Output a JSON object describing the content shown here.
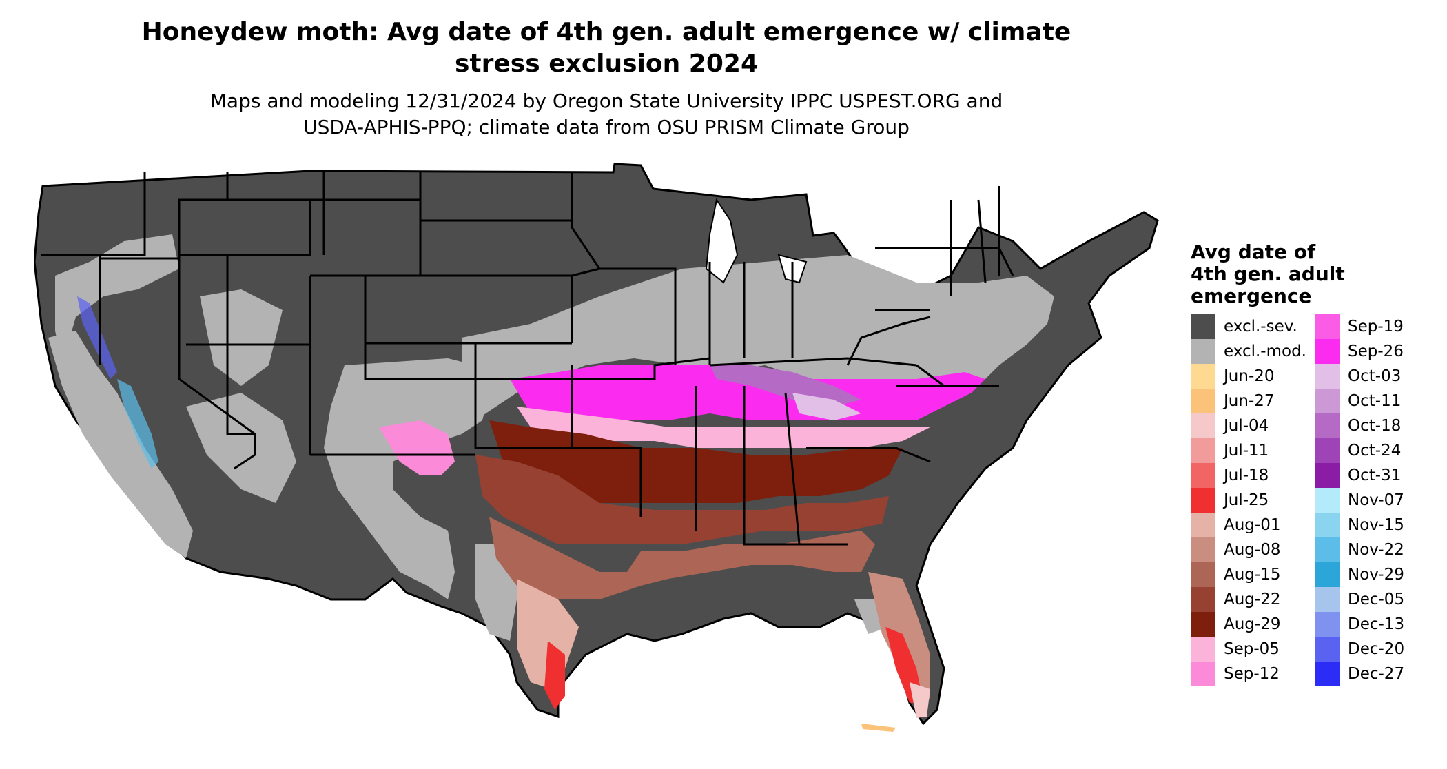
{
  "title": {
    "line1": "Honeydew moth: Avg date of 4th gen. adult emergence w/ climate",
    "line2": "stress exclusion 2024"
  },
  "subtitle": {
    "line1": "Maps and modeling 12/31/2024 by Oregon State University IPPC USPEST.ORG and",
    "line2": "USDA-APHIS-PPQ; climate data from OSU PRISM Climate Group"
  },
  "legend": {
    "title_line1": "Avg date of",
    "title_line2": "4th gen. adult",
    "title_line3": "emergence",
    "col1": [
      {
        "label": "excl.-sev.",
        "color": "#4d4d4d"
      },
      {
        "label": "excl.-mod.",
        "color": "#b3b3b3"
      },
      {
        "label": "Jun-20",
        "color": "#fdd991"
      },
      {
        "label": "Jun-27",
        "color": "#fbc279"
      },
      {
        "label": "Jul-04",
        "color": "#f5c9c9"
      },
      {
        "label": "Jul-11",
        "color": "#f29b9b"
      },
      {
        "label": "Jul-18",
        "color": "#f26565"
      },
      {
        "label": "Jul-25",
        "color": "#f03030"
      },
      {
        "label": "Aug-01",
        "color": "#e4b2a6"
      },
      {
        "label": "Aug-08",
        "color": "#c98e80"
      },
      {
        "label": "Aug-15",
        "color": "#ad6555"
      },
      {
        "label": "Aug-22",
        "color": "#974133"
      },
      {
        "label": "Aug-29",
        "color": "#7e1f0e"
      },
      {
        "label": "Sep-05",
        "color": "#fbb3d9"
      },
      {
        "label": "Sep-12",
        "color": "#fb8ad9"
      }
    ],
    "col2": [
      {
        "label": "Sep-19",
        "color": "#fb5ce6"
      },
      {
        "label": "Sep-26",
        "color": "#fb2cf0"
      },
      {
        "label": "Oct-03",
        "color": "#e2bfe6"
      },
      {
        "label": "Oct-11",
        "color": "#cc99d6"
      },
      {
        "label": "Oct-18",
        "color": "#b56ac6"
      },
      {
        "label": "Oct-24",
        "color": "#9f44b6"
      },
      {
        "label": "Oct-31",
        "color": "#8a1ca6"
      },
      {
        "label": "Nov-07",
        "color": "#b3ebfb"
      },
      {
        "label": "Nov-15",
        "color": "#8ad4ef"
      },
      {
        "label": "Nov-22",
        "color": "#5cbde9"
      },
      {
        "label": "Nov-29",
        "color": "#2ca6d9"
      },
      {
        "label": "Dec-05",
        "color": "#a6c4ec"
      },
      {
        "label": "Dec-13",
        "color": "#7f92ef"
      },
      {
        "label": "Dec-20",
        "color": "#5a62f2"
      },
      {
        "label": "Dec-27",
        "color": "#2c2cf7"
      }
    ]
  }
}
